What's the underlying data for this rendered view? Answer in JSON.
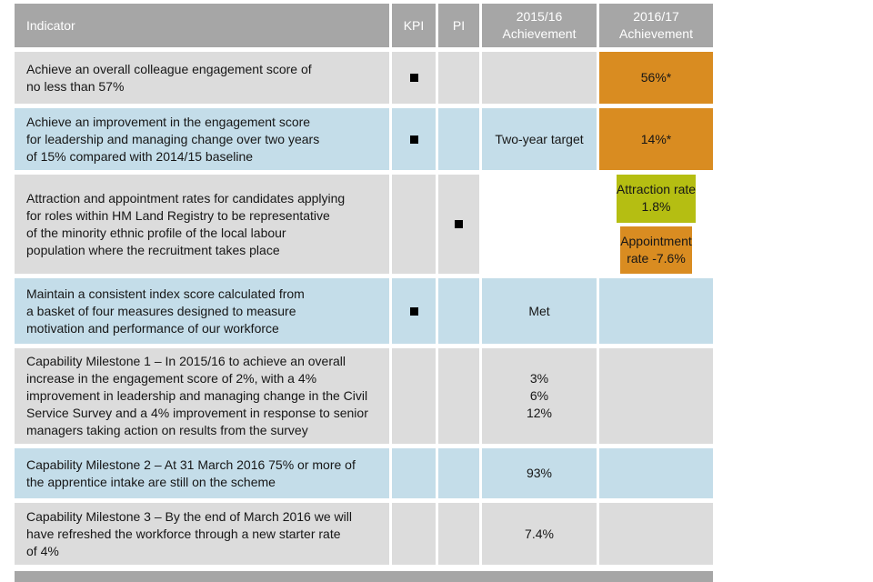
{
  "colors": {
    "header_bg": "#a6a6a6",
    "row_gray": "#dcdcdc",
    "row_blue": "#c4dde9",
    "achievement_orange": "#d98c21",
    "achievement_green": "#b5be12",
    "header_text": "#ffffff",
    "body_text": "#161616"
  },
  "icons": {
    "kpi_marker": "black-square",
    "pi_marker": "black-square"
  },
  "header": {
    "indicator": "Indicator",
    "kpi": "KPI",
    "pi": "PI",
    "ach_2015_16": "2015/16\nAchievement",
    "ach_2016_17": "2016/17\nAchievement"
  },
  "rows": [
    {
      "indicator": "Achieve an overall colleague engagement score of\nno less than 57%",
      "kpi_marker": true,
      "pi_marker": false,
      "ach_2015_16": "",
      "ach_2016_17": {
        "text": "56%*",
        "bg": "#d98c21"
      }
    },
    {
      "indicator": "Achieve an improvement in the engagement score\nfor leadership and managing change over two years\nof 15% compared with 2014/15 baseline",
      "kpi_marker": true,
      "pi_marker": false,
      "ach_2015_16": "Two-year target",
      "ach_2016_17": {
        "text": "14%*",
        "bg": "#d98c21"
      }
    },
    {
      "indicator": "Attraction and appointment rates for candidates applying\nfor roles within HM Land Registry to be representative\nof the minority ethnic profile of the local labour\npopulation where the recruitment takes place",
      "kpi_marker": false,
      "pi_marker": true,
      "ach_2015_16_split": {
        "top": "",
        "bottom": ""
      },
      "ach_2016_17_split": {
        "top": {
          "text": "Attraction rate\n1.8%",
          "bg": "#b5be12"
        },
        "bottom": {
          "text": "Appointment\nrate  -7.6%",
          "bg": "#d98c21"
        }
      }
    },
    {
      "indicator": "Maintain a consistent index score calculated from\na basket of four measures designed to measure\nmotivation and performance of our workforce",
      "kpi_marker": true,
      "pi_marker": false,
      "ach_2015_16": "Met",
      "ach_2016_17": {
        "text": "",
        "bg": ""
      }
    },
    {
      "indicator": "Capability Milestone 1 – In 2015/16 to achieve an overall\nincrease in the engagement score of 2%, with a 4%\nimprovement in leadership and managing change in the Civil\nService Survey and a 4% improvement in response to senior\nmanagers taking action on results from the survey",
      "kpi_marker": false,
      "pi_marker": false,
      "ach_2015_16": "3%\n6%\n12%",
      "ach_2016_17": {
        "text": "",
        "bg": ""
      }
    },
    {
      "indicator": "Capability Milestone 2 – At 31 March 2016 75% or more of\nthe apprentice intake are still on the scheme",
      "kpi_marker": false,
      "pi_marker": false,
      "ach_2015_16": "93%",
      "ach_2016_17": {
        "text": "",
        "bg": ""
      }
    },
    {
      "indicator": "Capability Milestone 3 – By the end of March 2016 we will\nhave refreshed the workforce through a new starter rate\nof 4%",
      "kpi_marker": false,
      "pi_marker": false,
      "ach_2015_16": "7.4%",
      "ach_2016_17": {
        "text": "",
        "bg": ""
      }
    }
  ]
}
